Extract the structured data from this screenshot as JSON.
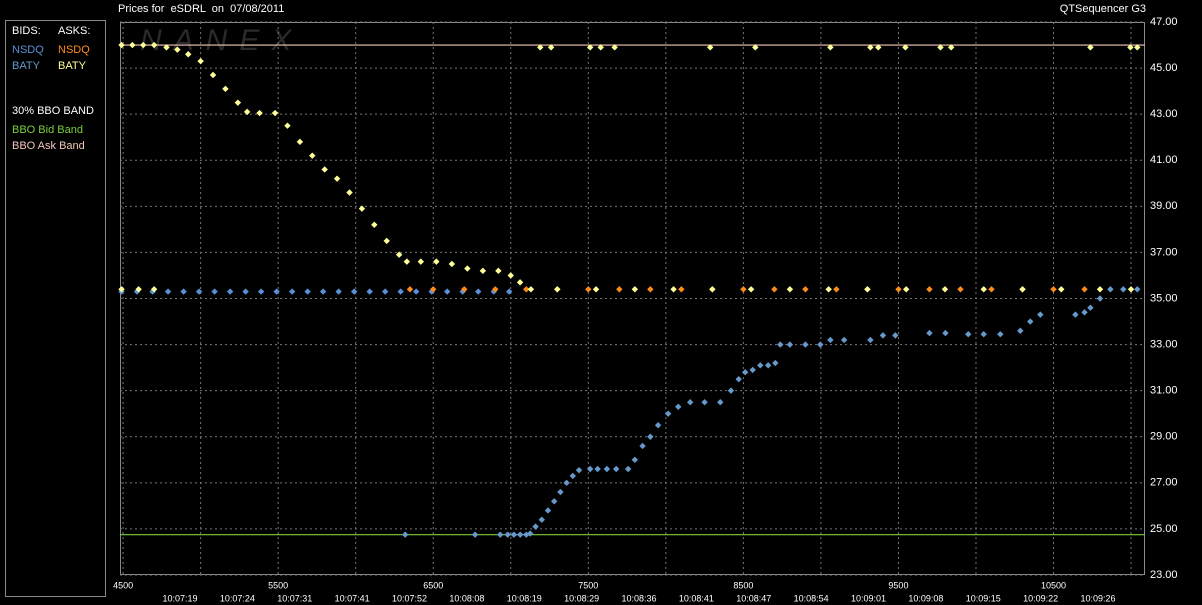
{
  "chart_data": {
    "type": "scatter",
    "title": "Prices for  eSDRL  on  07/08/2011",
    "source": "QTSequencer G3",
    "watermark": "NANEX",
    "legend": {
      "bids_label": "BIDS:",
      "asks_label": "ASKS:",
      "band_label": "30% BBO BAND"
    },
    "xlim": [
      4480,
      11090
    ],
    "xticks": [
      4500,
      5500,
      6500,
      7500,
      8500,
      9500,
      10500
    ],
    "xgrid_minor": [
      5000,
      6000,
      7000,
      8000,
      9000,
      10000,
      11000
    ],
    "time_ticks": [
      {
        "value": 4867,
        "label": "10:07:19"
      },
      {
        "value": 5237,
        "label": "10:07:24"
      },
      {
        "value": 5607,
        "label": "10:07:31"
      },
      {
        "value": 5977,
        "label": "10:07:41"
      },
      {
        "value": 6347,
        "label": "10:07:52"
      },
      {
        "value": 6717,
        "label": "10:08:08"
      },
      {
        "value": 7087,
        "label": "10:08:19"
      },
      {
        "value": 7457,
        "label": "10:08:29"
      },
      {
        "value": 7827,
        "label": "10:08:36"
      },
      {
        "value": 8197,
        "label": "10:08:41"
      },
      {
        "value": 8567,
        "label": "10:08:47"
      },
      {
        "value": 8937,
        "label": "10:08:54"
      },
      {
        "value": 9307,
        "label": "10:09:01"
      },
      {
        "value": 9677,
        "label": "10:09:08"
      },
      {
        "value": 10047,
        "label": "10:09:15"
      },
      {
        "value": 10417,
        "label": "10:09:22"
      },
      {
        "value": 10787,
        "label": "10:09:26"
      }
    ],
    "ylim": [
      23,
      47
    ],
    "yticks": [
      {
        "value": 23,
        "label": "23.00"
      },
      {
        "value": 25,
        "label": "25.00"
      },
      {
        "value": 27,
        "label": "27.00"
      },
      {
        "value": 29,
        "label": "29.00"
      },
      {
        "value": 31,
        "label": "31.00"
      },
      {
        "value": 33,
        "label": "33.00"
      },
      {
        "value": 35,
        "label": "35.00"
      },
      {
        "value": 37,
        "label": "37.00"
      },
      {
        "value": 39,
        "label": "39.00"
      },
      {
        "value": 41,
        "label": "41.00"
      },
      {
        "value": 43,
        "label": "43.00"
      },
      {
        "value": 45,
        "label": "45.00"
      },
      {
        "value": 47,
        "label": "47.00"
      }
    ],
    "grid": true,
    "series": [
      {
        "name": "NSDQ",
        "side": "bid",
        "color": "#5b8fd6",
        "x": [
          4490,
          4590,
          4690,
          4790,
          4890,
          4990,
          5090,
          5190,
          5290,
          5390,
          5490,
          5590,
          5690,
          5790,
          5890,
          5990,
          6090,
          6190,
          6290,
          6390,
          6490,
          6590,
          6690,
          6790,
          6890,
          6990
        ],
        "values": [
          35.3,
          35.3,
          35.3,
          35.3,
          35.3,
          35.3,
          35.3,
          35.3,
          35.3,
          35.3,
          35.3,
          35.3,
          35.3,
          35.3,
          35.3,
          35.3,
          35.3,
          35.3,
          35.3,
          35.3,
          35.3,
          35.3,
          35.3,
          35.3,
          35.3,
          35.3
        ]
      },
      {
        "name": "BATY",
        "side": "bid",
        "color": "#6699cc",
        "x": [
          6319,
          6770,
          6932,
          6980,
          7020,
          7061,
          7100,
          7125,
          7160,
          7200,
          7240,
          7280,
          7320,
          7360,
          7400,
          7440,
          7512,
          7560,
          7620,
          7680,
          7757,
          7800,
          7850,
          7900,
          7950,
          8015,
          8080,
          8157,
          8250,
          8351,
          8420,
          8470,
          8512,
          8560,
          8609,
          8660,
          8706,
          8738,
          8800,
          8900,
          8996,
          9061,
          9150,
          9319,
          9400,
          9480,
          9700,
          9803,
          9950,
          10050,
          10157,
          10286,
          10350,
          10415,
          10641,
          10700,
          10738,
          10800,
          10867,
          10950,
          11040
        ],
        "values": [
          24.75,
          24.75,
          24.75,
          24.75,
          24.75,
          24.75,
          24.75,
          24.8,
          25.1,
          25.4,
          25.8,
          26.2,
          26.6,
          27.0,
          27.3,
          27.55,
          27.6,
          27.6,
          27.6,
          27.6,
          27.6,
          28.0,
          28.6,
          29.0,
          29.5,
          30.0,
          30.3,
          30.5,
          30.5,
          30.5,
          31.0,
          31.5,
          31.8,
          31.9,
          32.1,
          32.1,
          32.2,
          33.0,
          33.0,
          33.0,
          33.0,
          33.2,
          33.2,
          33.2,
          33.4,
          33.4,
          33.5,
          33.5,
          33.45,
          33.45,
          33.45,
          33.6,
          34.0,
          34.3,
          34.3,
          34.4,
          34.6,
          35.0,
          35.4,
          35.4,
          35.4
        ]
      },
      {
        "name": "NSDQ",
        "side": "ask",
        "color": "#ff8c1a",
        "x": [
          6350,
          6500,
          6700,
          6900,
          7100,
          7300,
          7500,
          7700,
          7900,
          8100,
          8300,
          8500,
          8700,
          8900,
          9100,
          9300,
          9500,
          9700,
          9900,
          10100,
          10300,
          10500,
          10700
        ],
        "values": [
          35.4,
          35.4,
          35.4,
          35.4,
          35.4,
          35.4,
          35.4,
          35.4,
          35.4,
          35.4,
          35.4,
          35.4,
          35.4,
          35.4,
          35.4,
          35.4,
          35.4,
          35.4,
          35.4,
          35.4,
          35.4,
          35.4,
          35.4
        ]
      },
      {
        "name": "BATY",
        "side": "ask",
        "color": "#ffff99",
        "x": [
          4490,
          4560,
          4630,
          4700,
          4780,
          4850,
          4920,
          5000,
          5080,
          5160,
          5240,
          5300,
          5380,
          5480,
          5560,
          5640,
          5720,
          5800,
          5880,
          5960,
          6040,
          6120,
          6200,
          6280,
          6330,
          6420,
          6520,
          6620,
          6720,
          6820,
          6920,
          7000,
          7060,
          7130,
          4490,
          4600,
          4700,
          7300,
          7550,
          7800,
          8050,
          8300,
          8550,
          8800,
          9050,
          9300,
          9550,
          9800,
          10050,
          10300,
          10550,
          10800,
          11000,
          7190,
          7260,
          7512,
          7580,
          7670,
          8286,
          8577,
          9061,
          9319,
          9370,
          9545,
          9771,
          9840,
          10738,
          10996,
          11040
        ],
        "values": [
          46.0,
          46.0,
          46.0,
          46.0,
          45.9,
          45.8,
          45.6,
          45.3,
          44.7,
          44.1,
          43.5,
          43.1,
          43.05,
          43.05,
          42.5,
          41.8,
          41.2,
          40.6,
          40.2,
          39.6,
          38.9,
          38.2,
          37.5,
          36.9,
          36.6,
          36.6,
          36.6,
          36.5,
          36.3,
          36.2,
          36.2,
          36.0,
          35.7,
          35.4,
          35.4,
          35.4,
          35.4,
          35.4,
          35.4,
          35.4,
          35.4,
          35.4,
          35.4,
          35.4,
          35.4,
          35.4,
          35.4,
          35.4,
          35.4,
          35.4,
          35.4,
          35.4,
          35.4,
          45.9,
          45.9,
          45.9,
          45.9,
          45.9,
          45.9,
          45.9,
          45.9,
          45.9,
          45.9,
          45.9,
          45.9,
          45.9,
          45.9,
          45.9,
          45.9
        ]
      },
      {
        "name": "BBO Bid Band",
        "side": "band",
        "color": "#7ccf3c",
        "x": [
          4480,
          11090
        ],
        "values": [
          24.75,
          24.75
        ]
      },
      {
        "name": "BBO Ask Band",
        "side": "band",
        "color": "#f5c8b8",
        "x": [
          4480,
          11090
        ],
        "values": [
          46.0,
          46.0
        ]
      }
    ]
  }
}
